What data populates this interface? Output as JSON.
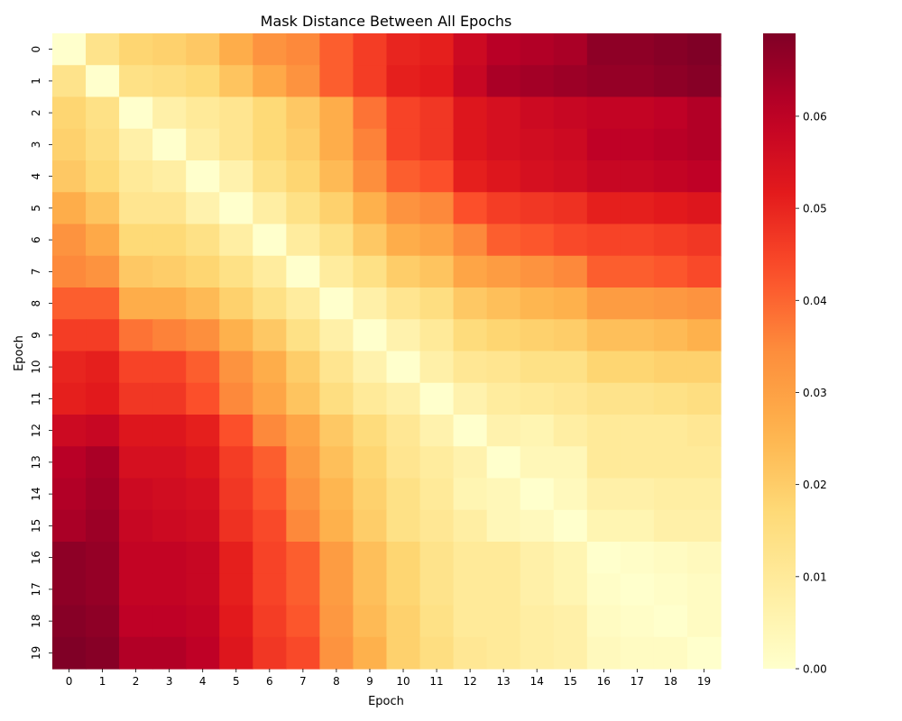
{
  "chart_data": {
    "type": "heatmap",
    "title": "Mask Distance Between All Epochs",
    "xlabel": "Epoch",
    "ylabel": "Epoch",
    "x_tick_labels": [
      "0",
      "1",
      "2",
      "3",
      "4",
      "5",
      "6",
      "7",
      "8",
      "9",
      "10",
      "11",
      "12",
      "13",
      "14",
      "15",
      "16",
      "17",
      "18",
      "19"
    ],
    "y_tick_labels": [
      "0",
      "1",
      "2",
      "3",
      "4",
      "5",
      "6",
      "7",
      "8",
      "9",
      "10",
      "11",
      "12",
      "13",
      "14",
      "15",
      "16",
      "17",
      "18",
      "19"
    ],
    "colormap": "YlOrRd",
    "value_range": [
      0,
      0.069
    ],
    "colorbar_ticks": [
      "0.00",
      "0.01",
      "0.02",
      "0.03",
      "0.04",
      "0.05",
      "0.06"
    ],
    "colorbar_tick_values": [
      0,
      0.01,
      0.02,
      0.03,
      0.04,
      0.05,
      0.06
    ],
    "matrix": [
      [
        0.0,
        0.013,
        0.018,
        0.019,
        0.021,
        0.027,
        0.033,
        0.035,
        0.041,
        0.046,
        0.05,
        0.051,
        0.057,
        0.061,
        0.062,
        0.063,
        0.067,
        0.067,
        0.068,
        0.069
      ],
      [
        0.013,
        0.0,
        0.014,
        0.015,
        0.017,
        0.022,
        0.028,
        0.033,
        0.041,
        0.046,
        0.051,
        0.052,
        0.058,
        0.063,
        0.064,
        0.065,
        0.066,
        0.066,
        0.067,
        0.068
      ],
      [
        0.018,
        0.014,
        0.0,
        0.007,
        0.01,
        0.012,
        0.017,
        0.021,
        0.027,
        0.038,
        0.045,
        0.047,
        0.053,
        0.055,
        0.057,
        0.058,
        0.059,
        0.059,
        0.06,
        0.062
      ],
      [
        0.019,
        0.015,
        0.007,
        0.0,
        0.008,
        0.012,
        0.017,
        0.02,
        0.027,
        0.036,
        0.045,
        0.047,
        0.053,
        0.055,
        0.056,
        0.057,
        0.06,
        0.06,
        0.061,
        0.062
      ],
      [
        0.021,
        0.017,
        0.01,
        0.008,
        0.0,
        0.006,
        0.014,
        0.018,
        0.024,
        0.034,
        0.041,
        0.043,
        0.051,
        0.053,
        0.055,
        0.056,
        0.058,
        0.058,
        0.059,
        0.06
      ],
      [
        0.027,
        0.022,
        0.012,
        0.012,
        0.006,
        0.0,
        0.008,
        0.014,
        0.019,
        0.026,
        0.033,
        0.035,
        0.043,
        0.046,
        0.047,
        0.048,
        0.051,
        0.051,
        0.052,
        0.053
      ],
      [
        0.033,
        0.028,
        0.017,
        0.017,
        0.014,
        0.008,
        0.0,
        0.009,
        0.014,
        0.021,
        0.027,
        0.029,
        0.035,
        0.041,
        0.042,
        0.044,
        0.045,
        0.045,
        0.046,
        0.047
      ],
      [
        0.035,
        0.033,
        0.021,
        0.02,
        0.018,
        0.014,
        0.009,
        0.0,
        0.009,
        0.014,
        0.02,
        0.022,
        0.029,
        0.031,
        0.033,
        0.035,
        0.041,
        0.041,
        0.042,
        0.044
      ],
      [
        0.041,
        0.041,
        0.027,
        0.027,
        0.024,
        0.019,
        0.014,
        0.009,
        0.0,
        0.007,
        0.012,
        0.015,
        0.021,
        0.023,
        0.025,
        0.026,
        0.031,
        0.031,
        0.032,
        0.033
      ],
      [
        0.046,
        0.046,
        0.038,
        0.036,
        0.034,
        0.026,
        0.021,
        0.014,
        0.007,
        0.0,
        0.006,
        0.01,
        0.016,
        0.018,
        0.019,
        0.02,
        0.023,
        0.023,
        0.024,
        0.026
      ],
      [
        0.05,
        0.051,
        0.045,
        0.045,
        0.041,
        0.033,
        0.027,
        0.02,
        0.012,
        0.006,
        0.0,
        0.007,
        0.011,
        0.012,
        0.014,
        0.014,
        0.018,
        0.018,
        0.019,
        0.019
      ],
      [
        0.051,
        0.052,
        0.047,
        0.047,
        0.043,
        0.035,
        0.029,
        0.022,
        0.015,
        0.01,
        0.007,
        0.0,
        0.006,
        0.009,
        0.01,
        0.011,
        0.013,
        0.013,
        0.014,
        0.015
      ],
      [
        0.057,
        0.058,
        0.053,
        0.053,
        0.051,
        0.043,
        0.035,
        0.029,
        0.021,
        0.016,
        0.011,
        0.006,
        0.0,
        0.006,
        0.005,
        0.008,
        0.01,
        0.01,
        0.01,
        0.011
      ],
      [
        0.061,
        0.063,
        0.055,
        0.055,
        0.053,
        0.046,
        0.041,
        0.031,
        0.023,
        0.018,
        0.012,
        0.009,
        0.006,
        0.0,
        0.004,
        0.004,
        0.01,
        0.01,
        0.01,
        0.01
      ],
      [
        0.062,
        0.064,
        0.057,
        0.056,
        0.055,
        0.047,
        0.042,
        0.033,
        0.025,
        0.019,
        0.014,
        0.01,
        0.005,
        0.004,
        0.0,
        0.003,
        0.007,
        0.007,
        0.008,
        0.008
      ],
      [
        0.063,
        0.065,
        0.058,
        0.057,
        0.056,
        0.048,
        0.044,
        0.035,
        0.026,
        0.02,
        0.014,
        0.011,
        0.008,
        0.004,
        0.003,
        0.0,
        0.005,
        0.005,
        0.007,
        0.007
      ],
      [
        0.067,
        0.066,
        0.059,
        0.059,
        0.058,
        0.051,
        0.045,
        0.041,
        0.031,
        0.023,
        0.018,
        0.013,
        0.01,
        0.01,
        0.007,
        0.005,
        0.0,
        0.001,
        0.002,
        0.003
      ],
      [
        0.067,
        0.066,
        0.059,
        0.059,
        0.058,
        0.051,
        0.045,
        0.041,
        0.031,
        0.023,
        0.018,
        0.013,
        0.01,
        0.01,
        0.007,
        0.005,
        0.001,
        0.0,
        0.001,
        0.002
      ],
      [
        0.068,
        0.067,
        0.06,
        0.06,
        0.059,
        0.052,
        0.046,
        0.042,
        0.032,
        0.024,
        0.019,
        0.014,
        0.01,
        0.01,
        0.008,
        0.007,
        0.002,
        0.001,
        0.0,
        0.002
      ],
      [
        0.069,
        0.068,
        0.062,
        0.062,
        0.06,
        0.053,
        0.047,
        0.044,
        0.033,
        0.026,
        0.019,
        0.015,
        0.011,
        0.01,
        0.008,
        0.007,
        0.003,
        0.002,
        0.002,
        0.0
      ]
    ]
  }
}
